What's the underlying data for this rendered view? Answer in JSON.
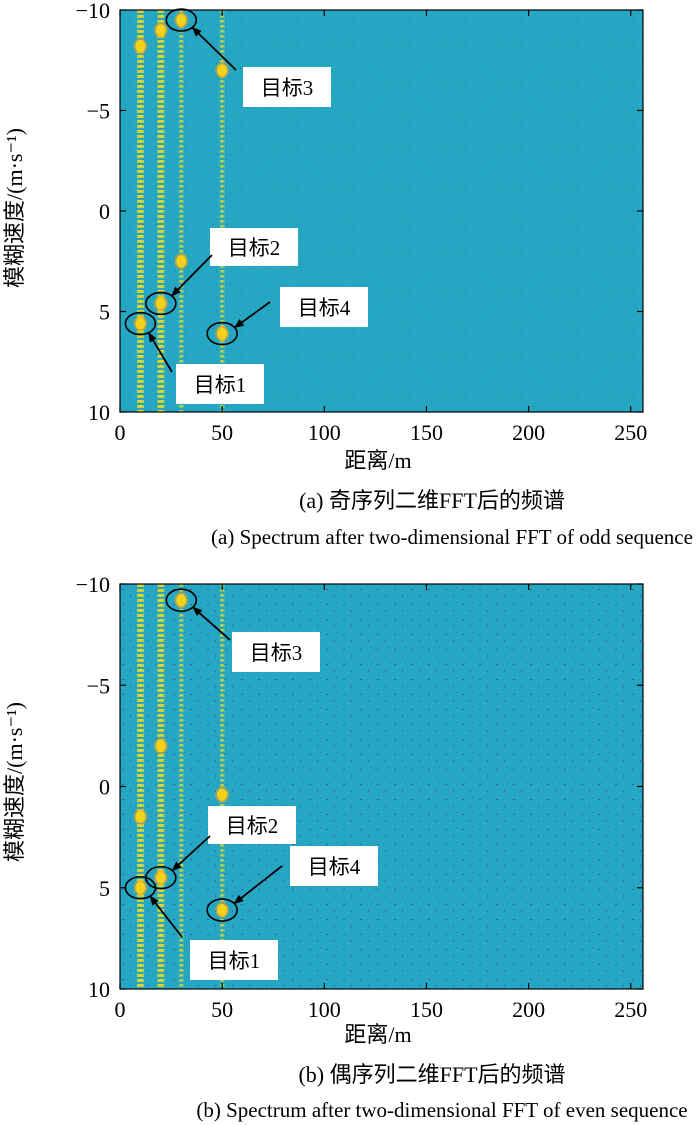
{
  "chart_data": [
    {
      "type": "heatmap",
      "id": "odd",
      "caption_cn": "(a) 奇序列二维FFT后的频谱",
      "caption_en": "(a) Spectrum after two-dimensional FFT of odd sequence",
      "xlabel": "距离/m",
      "ylabel": "模糊速度/(m·s⁻¹)",
      "xlim": [
        0,
        256
      ],
      "ylim": [
        -10,
        10
      ],
      "y_reversed": true,
      "xticks": [
        0,
        50,
        100,
        150,
        200,
        250
      ],
      "yticks": [
        -10,
        -5,
        0,
        5,
        10
      ],
      "background_color": "#25a6c2",
      "peak_color": "#f5d21a",
      "range_lines_m": [
        10,
        20,
        30,
        50
      ],
      "bright_peaks": [
        {
          "range": 10,
          "velocity": -8.2
        },
        {
          "range": 10,
          "velocity": 5.6
        },
        {
          "range": 20,
          "velocity": -9.0
        },
        {
          "range": 20,
          "velocity": 4.6
        },
        {
          "range": 30,
          "velocity": -9.5
        },
        {
          "range": 30,
          "velocity": 2.5
        },
        {
          "range": 50,
          "velocity": -7.0
        },
        {
          "range": 50,
          "velocity": 6.1
        }
      ],
      "targets": [
        {
          "label": "目标1",
          "range": 10,
          "velocity": 5.6
        },
        {
          "label": "目标2",
          "range": 20,
          "velocity": 4.6
        },
        {
          "label": "目标3",
          "range": 30,
          "velocity": -9.5
        },
        {
          "label": "目标4",
          "range": 50,
          "velocity": 6.1
        }
      ]
    },
    {
      "type": "heatmap",
      "id": "even",
      "caption_cn": "(b) 偶序列二维FFT后的频谱",
      "caption_en": "(b) Spectrum after two-dimensional FFT of even sequence",
      "xlabel": "距离/m",
      "ylabel": "模糊速度/(m·s⁻¹)",
      "xlim": [
        0,
        256
      ],
      "ylim": [
        -10,
        10
      ],
      "y_reversed": true,
      "xticks": [
        0,
        50,
        100,
        150,
        200,
        250
      ],
      "yticks": [
        -10,
        -5,
        0,
        5,
        10
      ],
      "background_color": "#25a6c2",
      "peak_color": "#f5d21a",
      "range_lines_m": [
        10,
        20,
        30,
        50
      ],
      "bright_peaks": [
        {
          "range": 10,
          "velocity": 1.5
        },
        {
          "range": 10,
          "velocity": 5.0
        },
        {
          "range": 20,
          "velocity": -2.0
        },
        {
          "range": 20,
          "velocity": 4.5
        },
        {
          "range": 30,
          "velocity": -9.2
        },
        {
          "range": 50,
          "velocity": 0.4
        },
        {
          "range": 50,
          "velocity": 6.1
        }
      ],
      "targets": [
        {
          "label": "目标1",
          "range": 10,
          "velocity": 5.0
        },
        {
          "label": "目标2",
          "range": 20,
          "velocity": 4.5
        },
        {
          "label": "目标3",
          "range": 30,
          "velocity": -9.2
        },
        {
          "label": "目标4",
          "range": 50,
          "velocity": 6.1
        }
      ]
    }
  ]
}
